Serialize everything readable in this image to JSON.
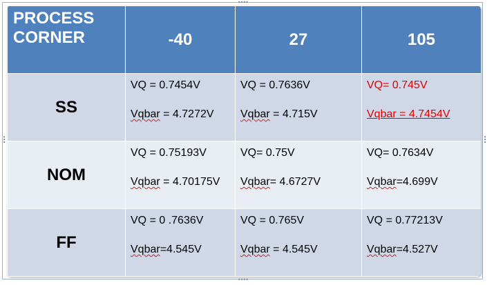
{
  "table": {
    "corner_label_line1": "PROCESS",
    "corner_label_line2": "CORNER",
    "temperatures": [
      "-40",
      "27",
      "105"
    ],
    "rows": [
      {
        "corner": "SS",
        "cells": [
          {
            "vq": "VQ = 0.7454V",
            "vqbar_word": "Vqbar",
            "vqbar_rest": " = 4.7272V"
          },
          {
            "vq": "VQ  =  0.7636V",
            "vqbar_word": "Vqbar",
            "vqbar_rest": " = 4.715V"
          },
          {
            "vq": "VQ=  0.745V",
            "vqbar_word": "Vqbar",
            "vqbar_rest": " =  4.7454V"
          }
        ]
      },
      {
        "corner": "NOM",
        "cells": [
          {
            "vq": "VQ = 0.75193V",
            "vqbar_word": "Vqbar",
            "vqbar_rest": " = 4.70175V"
          },
          {
            "vq": "VQ= 0.75V",
            "vqbar_word": "Vqbar",
            "vqbar_rest": "= 4.6727V"
          },
          {
            "vq": "VQ= 0.7634V",
            "vqbar_word": "Vqbar",
            "vqbar_rest": "=4.699V"
          }
        ]
      },
      {
        "corner": "FF",
        "cells": [
          {
            "vq": "VQ = 0 .7636V",
            "vqbar_word": "Vqbar",
            "vqbar_rest": "=4.545V"
          },
          {
            "vq": "VQ = 0.765V",
            "vqbar_word": "Vqbar",
            "vqbar_rest": " = 4.545V"
          },
          {
            "vq": "VQ  = 0.77213V",
            "vqbar_word": "Vqbar",
            "vqbar_rest": "=4.527V"
          }
        ]
      }
    ]
  },
  "colors": {
    "header_bg": "#4f81bd",
    "row_dark": "#d0d8e8",
    "row_light": "#e9edf4",
    "highlight_text": "#e00000"
  }
}
